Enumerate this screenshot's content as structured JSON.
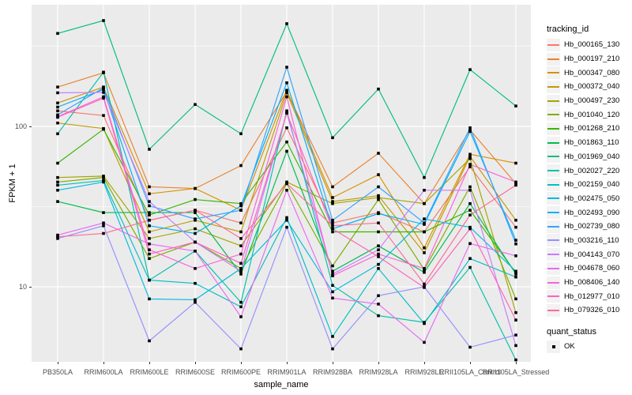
{
  "colors": {
    "panel_bg": "#EBEBEB",
    "grid_major": "#FFFFFF",
    "grid_minor": "#F7F7F7",
    "axis_text": "#4D4D4D",
    "axis_title": "#000000",
    "marker": "#000000",
    "legend_key_bg": "#F2F2F2"
  },
  "legend": {
    "color_title": "tracking_id",
    "point_title": "quant_status",
    "point_items": [
      {
        "label": "OK"
      }
    ]
  },
  "chart_data": {
    "type": "line",
    "title": "",
    "xlabel": "sample_name",
    "ylabel": "FPKM + 1",
    "y_scale": "log10",
    "y_ticks": [
      100,
      10
    ],
    "y_minor_ticks": [
      316.23,
      31.62
    ],
    "ylim_log10": [
      0.52,
      2.77
    ],
    "grid": true,
    "legend_position": "right",
    "marker": "black-square",
    "categories": [
      "PB350LA",
      "RRIM600LA",
      "RRIM600LE",
      "RRIM600SE",
      "RRIM600PE",
      "RRIM901LA",
      "RRIM928BA",
      "RRIM928LA",
      "RRIM928LE",
      "RRII105LA_Control",
      "RRII105LA_Stressed"
    ],
    "series": [
      {
        "name": "Hb_000165_130",
        "color": "#F8766D",
        "values": [
          125,
          117,
          26,
          30,
          25,
          98,
          25,
          29,
          22,
          56,
          23.5
        ]
      },
      {
        "name": "Hb_000197_210",
        "color": "#EA8331",
        "values": [
          176,
          216,
          42,
          41,
          57,
          165,
          42,
          68,
          33,
          95,
          44
        ]
      },
      {
        "name": "Hb_000347_080",
        "color": "#D89000",
        "values": [
          140,
          176,
          38,
          41,
          30,
          168,
          36,
          50,
          17.5,
          67,
          59
        ]
      },
      {
        "name": "Hb_000372_040",
        "color": "#C09B00",
        "values": [
          105,
          97,
          22,
          26,
          22,
          162,
          34,
          37,
          16.3,
          65,
          26
        ]
      },
      {
        "name": "Hb_000497_230",
        "color": "#A3A500",
        "values": [
          48,
          49,
          20,
          23,
          18,
          45,
          33,
          36,
          33,
          63,
          6.9
        ]
      },
      {
        "name": "Hb_001040_120",
        "color": "#7CAE00",
        "values": [
          45,
          48,
          15,
          19,
          13,
          44,
          13.5,
          35,
          12.8,
          42,
          8.4
        ]
      },
      {
        "name": "Hb_001268_210",
        "color": "#39B600",
        "values": [
          59,
          96,
          28,
          35,
          33,
          80,
          22,
          22,
          22,
          30,
          12.2
        ]
      },
      {
        "name": "Hb_001863_110",
        "color": "#00BB4E",
        "values": [
          34,
          29,
          29,
          29,
          12,
          70,
          12.5,
          18,
          12.3,
          33,
          12
        ]
      },
      {
        "name": "Hb_001969_040",
        "color": "#00BF7D",
        "values": [
          380,
          457,
          72,
          137,
          90,
          437,
          85,
          171,
          48,
          226,
          134
        ]
      },
      {
        "name": "Hb_002027_220",
        "color": "#00C1A7",
        "values": [
          90,
          218,
          11,
          16.7,
          8,
          125,
          10.2,
          6.6,
          6,
          13.2,
          3.5
        ]
      },
      {
        "name": "Hb_002159_040",
        "color": "#00BFC4",
        "values": [
          43,
          46,
          11,
          10.5,
          7.5,
          27,
          4.9,
          13,
          5.9,
          15,
          11.5
        ]
      },
      {
        "name": "Hb_002475_050",
        "color": "#00BAE0",
        "values": [
          40,
          45,
          8.4,
          8.3,
          13,
          26,
          9.3,
          13.8,
          26.5,
          23.5,
          12.5
        ]
      },
      {
        "name": "Hb_002493_090",
        "color": "#00B0F6",
        "values": [
          132,
          170,
          24,
          21.5,
          32,
          187,
          23,
          28.6,
          24.5,
          93,
          19.5
        ]
      },
      {
        "name": "Hb_002739_080",
        "color": "#35A2FF",
        "values": [
          118,
          174,
          32,
          26.5,
          30,
          234,
          26,
          42,
          25,
          98,
          18.5
        ]
      },
      {
        "name": "Hb_003216_110",
        "color": "#9590FF",
        "values": [
          20,
          24,
          4.6,
          8,
          4.1,
          23.5,
          4.1,
          8.8,
          10,
          4.2,
          5
        ]
      },
      {
        "name": "Hb_004143_070",
        "color": "#C77CFF",
        "values": [
          162,
          163,
          34,
          19,
          12.5,
          121,
          12,
          17,
          40,
          40,
          4.3
        ]
      },
      {
        "name": "Hb_004678_060",
        "color": "#E76BF3",
        "values": [
          21,
          25,
          18.5,
          16.7,
          6.5,
          40,
          8.5,
          7.8,
          4.5,
          18.6,
          15.6
        ]
      },
      {
        "name": "Hb_008406_140",
        "color": "#FA62DB",
        "values": [
          115,
          153,
          17,
          13,
          16,
          153,
          11.7,
          16,
          13,
          58,
          45
        ]
      },
      {
        "name": "Hb_012977_010",
        "color": "#FF62BC",
        "values": [
          114,
          150,
          16,
          19,
          14,
          121,
          23,
          15.4,
          9.9,
          23,
          6.2
        ]
      },
      {
        "name": "Hb_079326_010",
        "color": "#FF6A98",
        "values": [
          20.5,
          21.5,
          26,
          30,
          20,
          44,
          24,
          25,
          10.4,
          28,
          43
        ]
      }
    ]
  }
}
